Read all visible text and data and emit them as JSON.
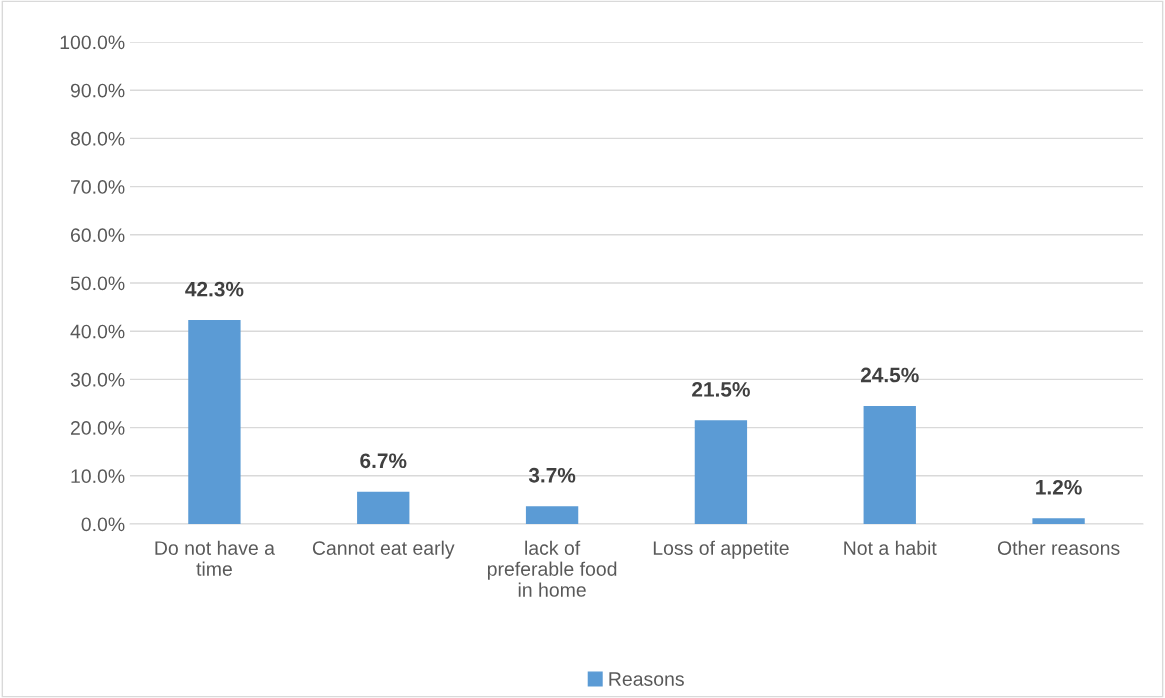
{
  "chart_data": {
    "type": "bar",
    "categories": [
      "Do not have a time",
      "Cannot eat early",
      "lack of preferable food in home",
      "Loss of appetite",
      "Not a habit",
      "Other reasons"
    ],
    "series": [
      {
        "name": "Reasons",
        "color": "#5b9bd5",
        "values": [
          42.3,
          6.7,
          3.7,
          21.5,
          24.5,
          1.2
        ],
        "value_labels": [
          "42.3%",
          "6.7%",
          "3.7%",
          "21.5%",
          "24.5%",
          "1.2%"
        ]
      }
    ],
    "ylim": [
      0,
      100
    ],
    "yticks": [
      {
        "value": 0,
        "label": "0.0%"
      },
      {
        "value": 10,
        "label": "10.0%"
      },
      {
        "value": 20,
        "label": "20.0%"
      },
      {
        "value": 30,
        "label": "30.0%"
      },
      {
        "value": 40,
        "label": "40.0%"
      },
      {
        "value": 50,
        "label": "50.0%"
      },
      {
        "value": 60,
        "label": "60.0%"
      },
      {
        "value": 70,
        "label": "70.0%"
      },
      {
        "value": 80,
        "label": "80.0%"
      },
      {
        "value": 90,
        "label": "90.0%"
      },
      {
        "value": 100,
        "label": "100.0%"
      }
    ],
    "grid": "y",
    "legend": "bottom"
  }
}
